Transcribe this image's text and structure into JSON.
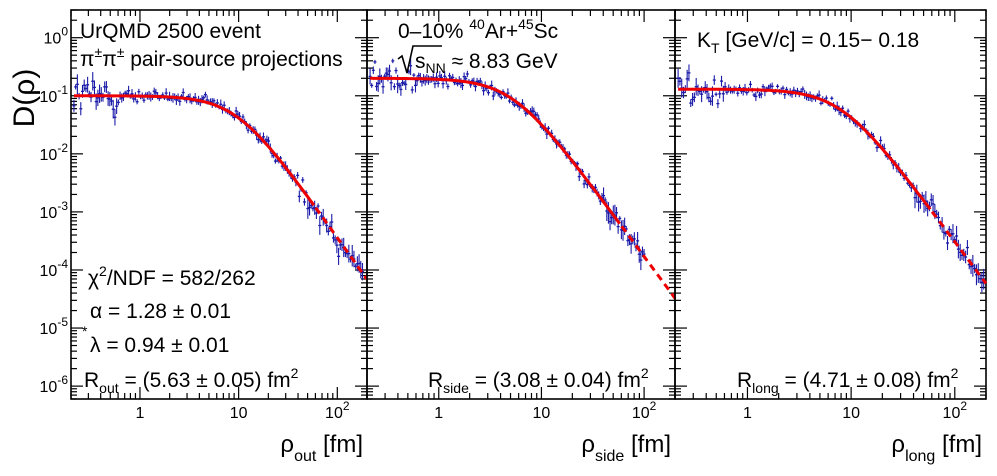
{
  "figure": {
    "ylabel_main": "D",
    "ylabel_var": "ρ",
    "xunit": "[fm]",
    "xlabel_sym": "ρ"
  },
  "colors": {
    "data": "#1a1aa8",
    "fit": "#ee0000",
    "axis": "#000000"
  },
  "chart_data": [
    {
      "type": "scatter",
      "panel": "out",
      "xlabel_sub": "out",
      "x_scale": "log",
      "y_scale": "log",
      "xlim": [
        0.2,
        200
      ],
      "ylim": [
        6e-07,
        3
      ],
      "xticks": [
        {
          "v": 1,
          "t": "1"
        },
        {
          "v": 10,
          "t": "10"
        },
        {
          "v": 100,
          "t": "10",
          "sup": "2"
        }
      ],
      "yticks": [
        {
          "v": 1,
          "e": "0"
        },
        {
          "v": 0.1,
          "e": "-1"
        },
        {
          "v": 0.01,
          "e": "-2"
        },
        {
          "v": 0.001,
          "e": "-3"
        },
        {
          "v": 0.0001,
          "e": "-4"
        },
        {
          "v": 1e-05,
          "e": "-5"
        },
        {
          "v": 1e-06,
          "e": "-6"
        }
      ],
      "fit": {
        "N": 0.1,
        "R": 5.63,
        "alpha": 1.28,
        "x_fit_max": 60
      },
      "data_max": 180,
      "texts": {
        "line1": "UrQMD 2500 event",
        "line2": "π",
        "line2_sup": "±",
        "line2_b": "π",
        "line2_b_sup": "±",
        "line2_rest": " pair-source projections",
        "chi2": "χ",
        "chi2_sup": "2",
        "chi2_rest": "/NDF = 582/262",
        "alpha": "α = 1.28 ± 0.01",
        "lambda_star": "*",
        "lambda": "λ = 0.94 ± 0.01",
        "radius_R": "R",
        "radius_sub": "out",
        "radius_val": " = (5.63 ± 0.05) fm",
        "radius_sup": "2"
      }
    },
    {
      "type": "scatter",
      "panel": "side",
      "xlabel_sub": "side",
      "x_scale": "log",
      "y_scale": "log",
      "xlim": [
        0.2,
        200
      ],
      "ylim": [
        6e-07,
        3
      ],
      "xticks": [
        {
          "v": 1,
          "t": "1"
        },
        {
          "v": 10,
          "t": "10"
        },
        {
          "v": 100,
          "t": "10",
          "sup": "2"
        }
      ],
      "fit": {
        "N": 0.2,
        "R": 3.08,
        "alpha": 1.28,
        "x_fit_max": 60
      },
      "data_max": 100,
      "texts": {
        "cent": "0–10% ",
        "ar_sup": "40",
        "ar": "Ar+",
        "sc_sup": "45",
        "sc": "Sc",
        "sqrt_s": "s",
        "sqrt_sub": "NN",
        "energy": " ≈ 8.83 GeV",
        "radius_R": "R",
        "radius_sub": "side",
        "radius_val": " = (3.08 ± 0.04) fm",
        "radius_sup": "2"
      }
    },
    {
      "type": "scatter",
      "panel": "long",
      "xlabel_sub": "long",
      "x_scale": "log",
      "y_scale": "log",
      "xlim": [
        0.2,
        200
      ],
      "ylim": [
        6e-07,
        3
      ],
      "xticks": [
        {
          "v": 1,
          "t": "1"
        },
        {
          "v": 10,
          "t": "10"
        },
        {
          "v": 100,
          "t": "10",
          "sup": "2"
        }
      ],
      "fit": {
        "N": 0.13,
        "R": 4.71,
        "alpha": 1.28,
        "x_fit_max": 60
      },
      "data_max": 190,
      "texts": {
        "kt": "K",
        "kt_sub": "T",
        "kt_rest": " [GeV/c] = 0.15− 0.18",
        "radius_R": "R",
        "radius_sub": "long",
        "radius_val": " = (4.71 ± 0.08) fm",
        "radius_sup": "2"
      }
    }
  ]
}
